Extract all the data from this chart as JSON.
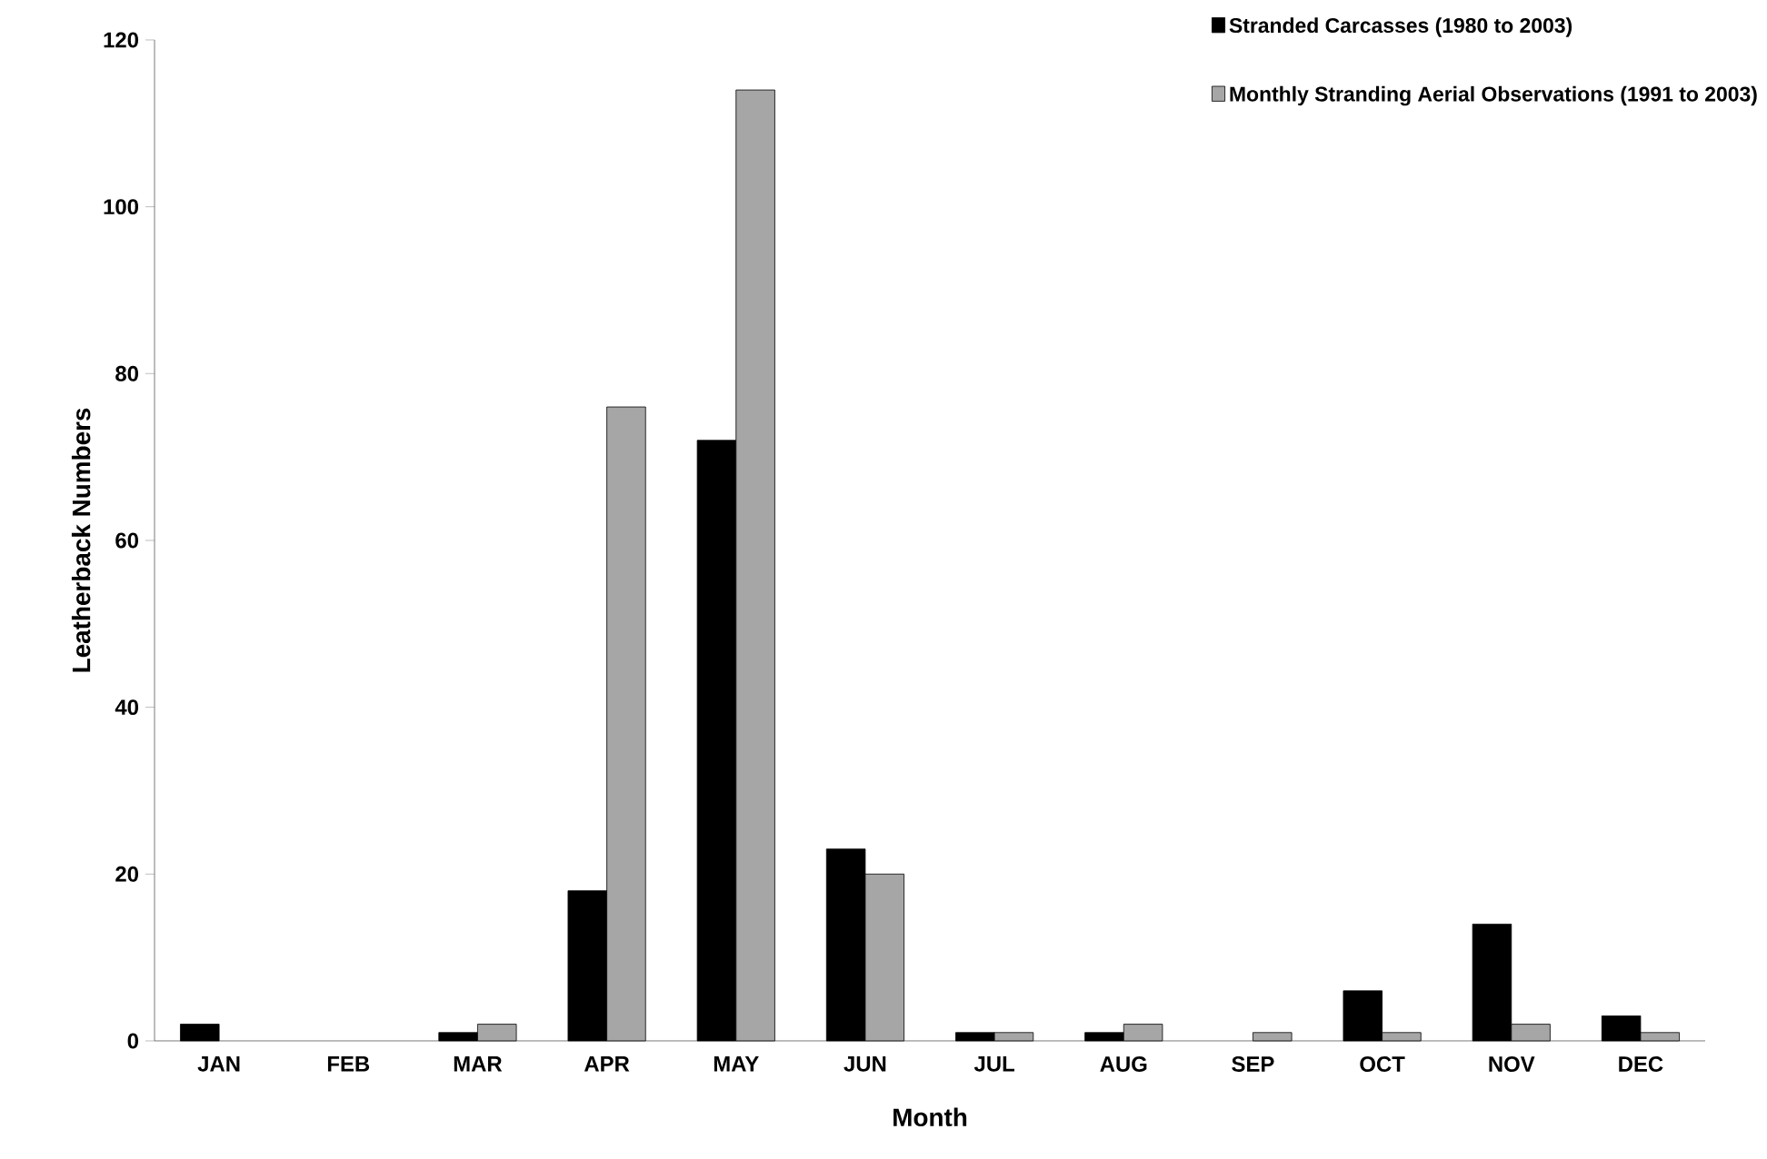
{
  "chart_data": {
    "type": "bar",
    "xlabel": "Month",
    "ylabel": "Leatherback Numbers",
    "categories": [
      "JAN",
      "FEB",
      "MAR",
      "APR",
      "MAY",
      "JUN",
      "JUL",
      "AUG",
      "SEP",
      "OCT",
      "NOV",
      "DEC"
    ],
    "series": [
      {
        "name": "Stranded Carcasses (1980 to 2003)",
        "color": "#000000",
        "values": [
          2,
          0,
          1,
          18,
          72,
          23,
          1,
          1,
          0,
          6,
          14,
          3
        ]
      },
      {
        "name": "Monthly Stranding Aerial Observations (1991 to 2003)",
        "color": "#a6a6a6",
        "values": [
          0,
          0,
          2,
          76,
          114,
          20,
          1,
          2,
          1,
          1,
          2,
          1
        ]
      }
    ],
    "ylim": [
      0,
      120
    ],
    "yticks": [
      0,
      20,
      40,
      60,
      80,
      100,
      120
    ],
    "grid": false,
    "legend": "top right"
  }
}
